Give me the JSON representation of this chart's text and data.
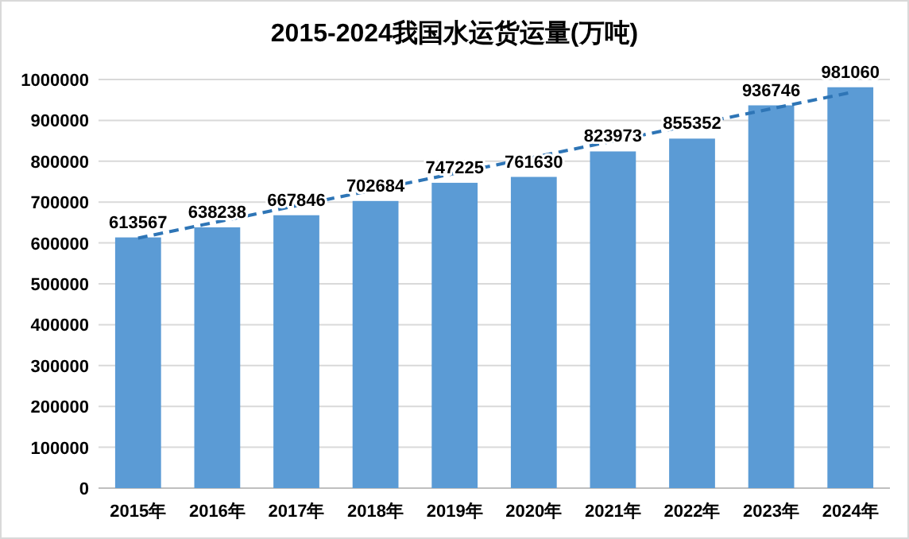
{
  "chart_data": {
    "type": "bar",
    "title": "2015-2024我国水运货运量(万吨)",
    "categories": [
      "2015年",
      "2016年",
      "2017年",
      "2018年",
      "2019年",
      "2020年",
      "2021年",
      "2022年",
      "2023年",
      "2024年"
    ],
    "series": [
      {
        "color": "#5b9bd5",
        "values": [
          613567,
          638238,
          667846,
          702684,
          747225,
          761630,
          823973,
          855352,
          936746,
          981060
        ],
        "value_labels": [
          "613567",
          "638238",
          "667846",
          "702684",
          "747225",
          "761630",
          "823973",
          "855352",
          "936746",
          "981060"
        ]
      },
      {
        "type": "line",
        "color": "#2e75b6",
        "line_style": "dashed",
        "x": [
          "2015年",
          "2024年"
        ],
        "values": [
          612000,
          968000
        ]
      }
    ],
    "ylim": [
      0,
      1000000
    ],
    "yticks": [
      0,
      100000,
      200000,
      300000,
      400000,
      500000,
      600000,
      700000,
      800000,
      900000,
      1000000
    ],
    "grid": "y"
  }
}
